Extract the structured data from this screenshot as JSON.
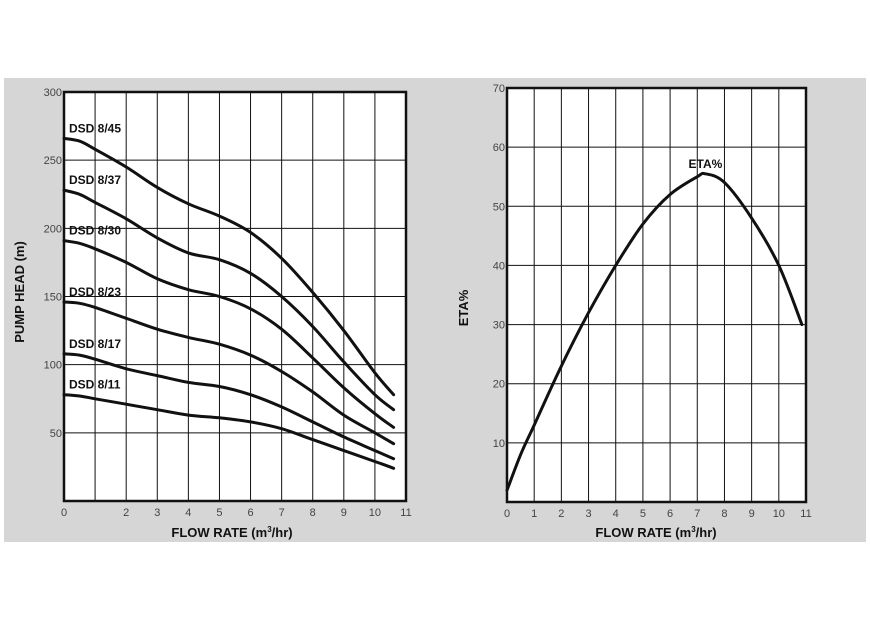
{
  "chart_data": [
    {
      "type": "line",
      "ylabel": "PUMP HEAD (m)",
      "xlabel_main": "FLOW RATE (m",
      "xlabel_sup": "3",
      "xlabel_end": "/hr)",
      "xlim": [
        0,
        11
      ],
      "ylim": [
        0,
        300
      ],
      "xticks": [
        0,
        2,
        3,
        4,
        5,
        6,
        7,
        8,
        9,
        10,
        11
      ],
      "yticks": [
        50,
        100,
        150,
        200,
        250,
        300
      ],
      "grid": true,
      "series": [
        {
          "name": "DSD 8/45",
          "x": [
            0,
            0.5,
            1,
            2,
            3,
            4,
            5,
            6,
            7,
            8,
            9,
            10,
            10.6
          ],
          "y": [
            266,
            264,
            258,
            245,
            230,
            218,
            209,
            197,
            178,
            153,
            125,
            94,
            78
          ]
        },
        {
          "name": "DSD 8/37",
          "x": [
            0,
            0.5,
            1,
            2,
            3,
            4,
            5,
            6,
            7,
            8,
            9,
            10,
            10.6
          ],
          "y": [
            228,
            225,
            219,
            207,
            193,
            182,
            177,
            167,
            150,
            128,
            102,
            78,
            67
          ]
        },
        {
          "name": "DSD 8/30",
          "x": [
            0,
            0.5,
            1,
            2,
            3,
            4,
            5,
            6,
            7,
            8,
            9,
            10,
            10.6
          ],
          "y": [
            191,
            189,
            185,
            175,
            163,
            155,
            150,
            141,
            126,
            105,
            83,
            64,
            54
          ]
        },
        {
          "name": "DSD 8/23",
          "x": [
            0,
            0.5,
            1,
            2,
            3,
            4,
            5,
            6,
            7,
            8,
            9,
            10,
            10.6
          ],
          "y": [
            146,
            145,
            142,
            134,
            126,
            120,
            115,
            107,
            95,
            80,
            63,
            50,
            42
          ]
        },
        {
          "name": "DSD 8/17",
          "x": [
            0,
            0.5,
            1,
            2,
            3,
            4,
            5,
            6,
            7,
            8,
            9,
            10,
            10.6
          ],
          "y": [
            108,
            107,
            104,
            97,
            92,
            87,
            84,
            78,
            69,
            58,
            47,
            37,
            31
          ]
        },
        {
          "name": "DSD 8/11",
          "x": [
            0,
            0.5,
            1,
            2,
            3,
            4,
            5,
            6,
            7,
            8,
            9,
            10,
            10.6
          ],
          "y": [
            78,
            77,
            75,
            71,
            67,
            63,
            61,
            58,
            53,
            45,
            37,
            29,
            24
          ]
        }
      ]
    },
    {
      "type": "line",
      "ylabel": "ETA%",
      "xlabel_main": "FLOW RATE (m",
      "xlabel_sup": "3",
      "xlabel_end": "/hr)",
      "xlim": [
        0,
        11
      ],
      "ylim": [
        0,
        70
      ],
      "xticks": [
        0,
        1,
        2,
        3,
        4,
        5,
        6,
        7,
        8,
        9,
        10,
        11
      ],
      "yticks": [
        10,
        20,
        30,
        40,
        50,
        60,
        70
      ],
      "grid": true,
      "annotation": "ETA%",
      "series": [
        {
          "x": [
            0,
            0.5,
            1,
            2,
            3,
            4,
            5,
            6,
            7,
            7.3,
            8,
            9,
            10,
            10.85
          ],
          "y": [
            2,
            8,
            13,
            23,
            32,
            40,
            47,
            52,
            55,
            55.5,
            54,
            48,
            40,
            30
          ]
        }
      ]
    }
  ]
}
